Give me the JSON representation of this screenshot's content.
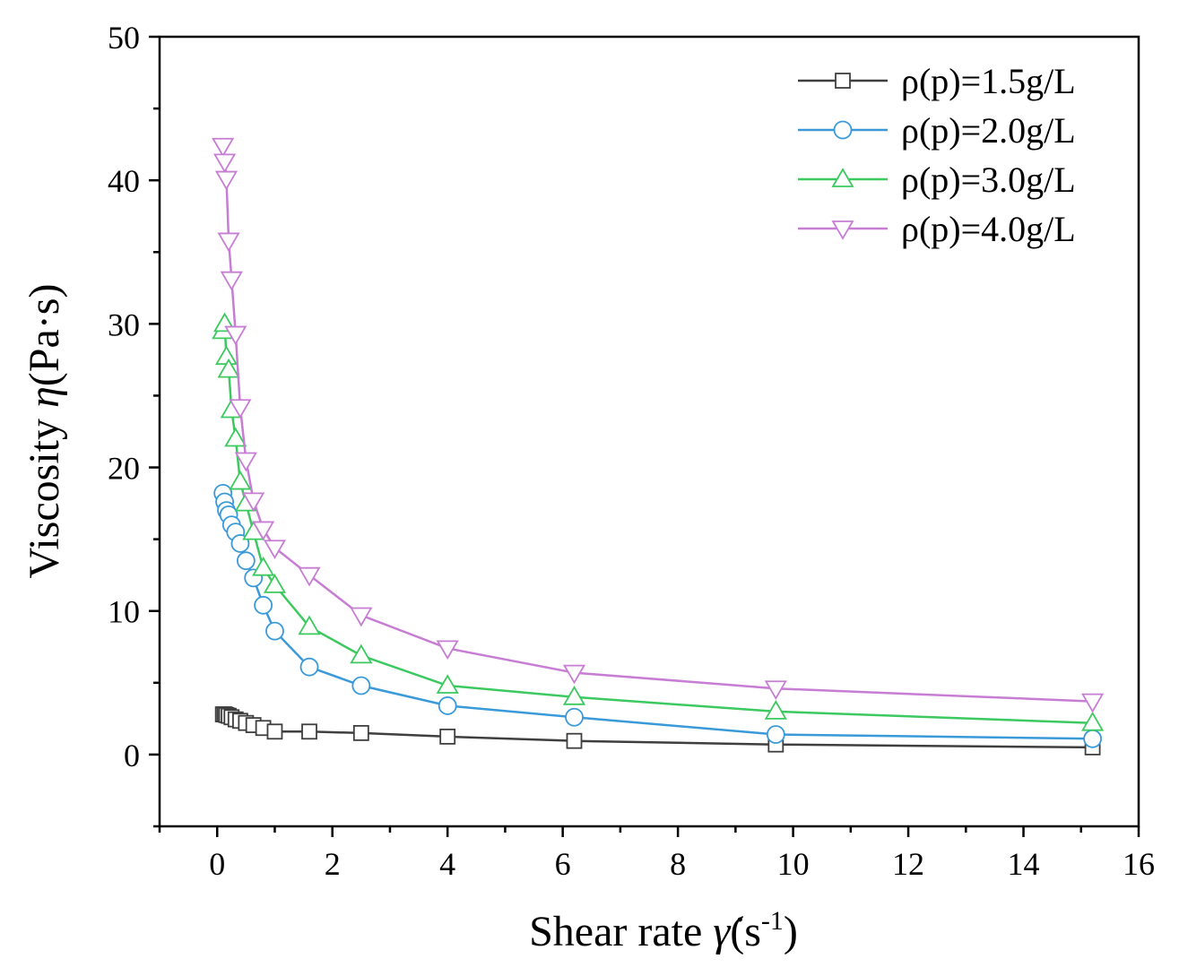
{
  "chart_data": {
    "type": "line",
    "xlabel": {
      "main": "Shear rate ",
      "symbol": "γ̇",
      "unit_open": "(s",
      "unit_exp": "-1",
      "unit_close": ")"
    },
    "ylabel": {
      "main": "Viscosity ",
      "symbol": "η",
      "unit": "(Pa·s)"
    },
    "xlim": [
      -1,
      16
    ],
    "ylim": [
      -5,
      50
    ],
    "xticks": [
      0,
      2,
      4,
      6,
      8,
      10,
      12,
      14,
      16
    ],
    "yticks": [
      0,
      10,
      20,
      30,
      40,
      50
    ],
    "xtick_labels": [
      "0",
      "2",
      "4",
      "6",
      "8",
      "10",
      "12",
      "14",
      "16"
    ],
    "ytick_labels": [
      "0",
      "10",
      "20",
      "30",
      "40",
      "50"
    ],
    "legend_position": "top-right",
    "series": [
      {
        "name": "ρ(p)=1.5g/L",
        "color": "#3f3f3f",
        "marker": "square",
        "x": [
          0.1,
          0.13,
          0.16,
          0.2,
          0.25,
          0.32,
          0.4,
          0.5,
          0.63,
          0.8,
          1.0,
          1.6,
          2.5,
          4.0,
          6.2,
          9.7,
          15.2
        ],
        "y": [
          2.8,
          2.8,
          2.75,
          2.7,
          2.6,
          2.45,
          2.35,
          2.2,
          2.05,
          1.85,
          1.6,
          1.6,
          1.5,
          1.25,
          0.95,
          0.7,
          0.5
        ]
      },
      {
        "name": "ρ(p)=2.0g/L",
        "color": "#3a9ad9",
        "marker": "circle",
        "x": [
          0.1,
          0.13,
          0.16,
          0.2,
          0.25,
          0.32,
          0.4,
          0.5,
          0.63,
          0.8,
          1.0,
          1.6,
          2.5,
          4.0,
          6.2,
          9.7,
          15.2
        ],
        "y": [
          18.2,
          17.6,
          17.0,
          16.7,
          16.0,
          15.5,
          14.7,
          13.5,
          12.3,
          10.4,
          8.6,
          6.1,
          4.8,
          3.4,
          2.6,
          1.4,
          1.1
        ]
      },
      {
        "name": "ρ(p)=3.0g/L",
        "color": "#3cc95f",
        "marker": "triangle-up",
        "x": [
          0.1,
          0.13,
          0.16,
          0.2,
          0.25,
          0.32,
          0.4,
          0.5,
          0.63,
          0.8,
          1.0,
          1.6,
          2.5,
          4.0,
          6.2,
          9.7,
          15.2
        ],
        "y": [
          29.5,
          30.0,
          27.7,
          26.8,
          24.0,
          22.0,
          19.0,
          17.5,
          15.5,
          13.0,
          11.8,
          8.9,
          6.9,
          4.8,
          4.0,
          3.0,
          2.2
        ]
      },
      {
        "name": "ρ(p)=4.0g/L",
        "color": "#c77dd4",
        "marker": "triangle-down",
        "x": [
          0.1,
          0.13,
          0.16,
          0.2,
          0.25,
          0.32,
          0.4,
          0.5,
          0.63,
          0.8,
          1.0,
          1.6,
          2.5,
          4.0,
          6.2,
          9.7,
          15.2
        ],
        "y": [
          42.4,
          41.3,
          40.1,
          35.8,
          33.1,
          29.3,
          24.2,
          20.5,
          17.7,
          15.7,
          14.4,
          12.5,
          9.7,
          7.4,
          5.7,
          4.6,
          3.7
        ]
      }
    ]
  }
}
